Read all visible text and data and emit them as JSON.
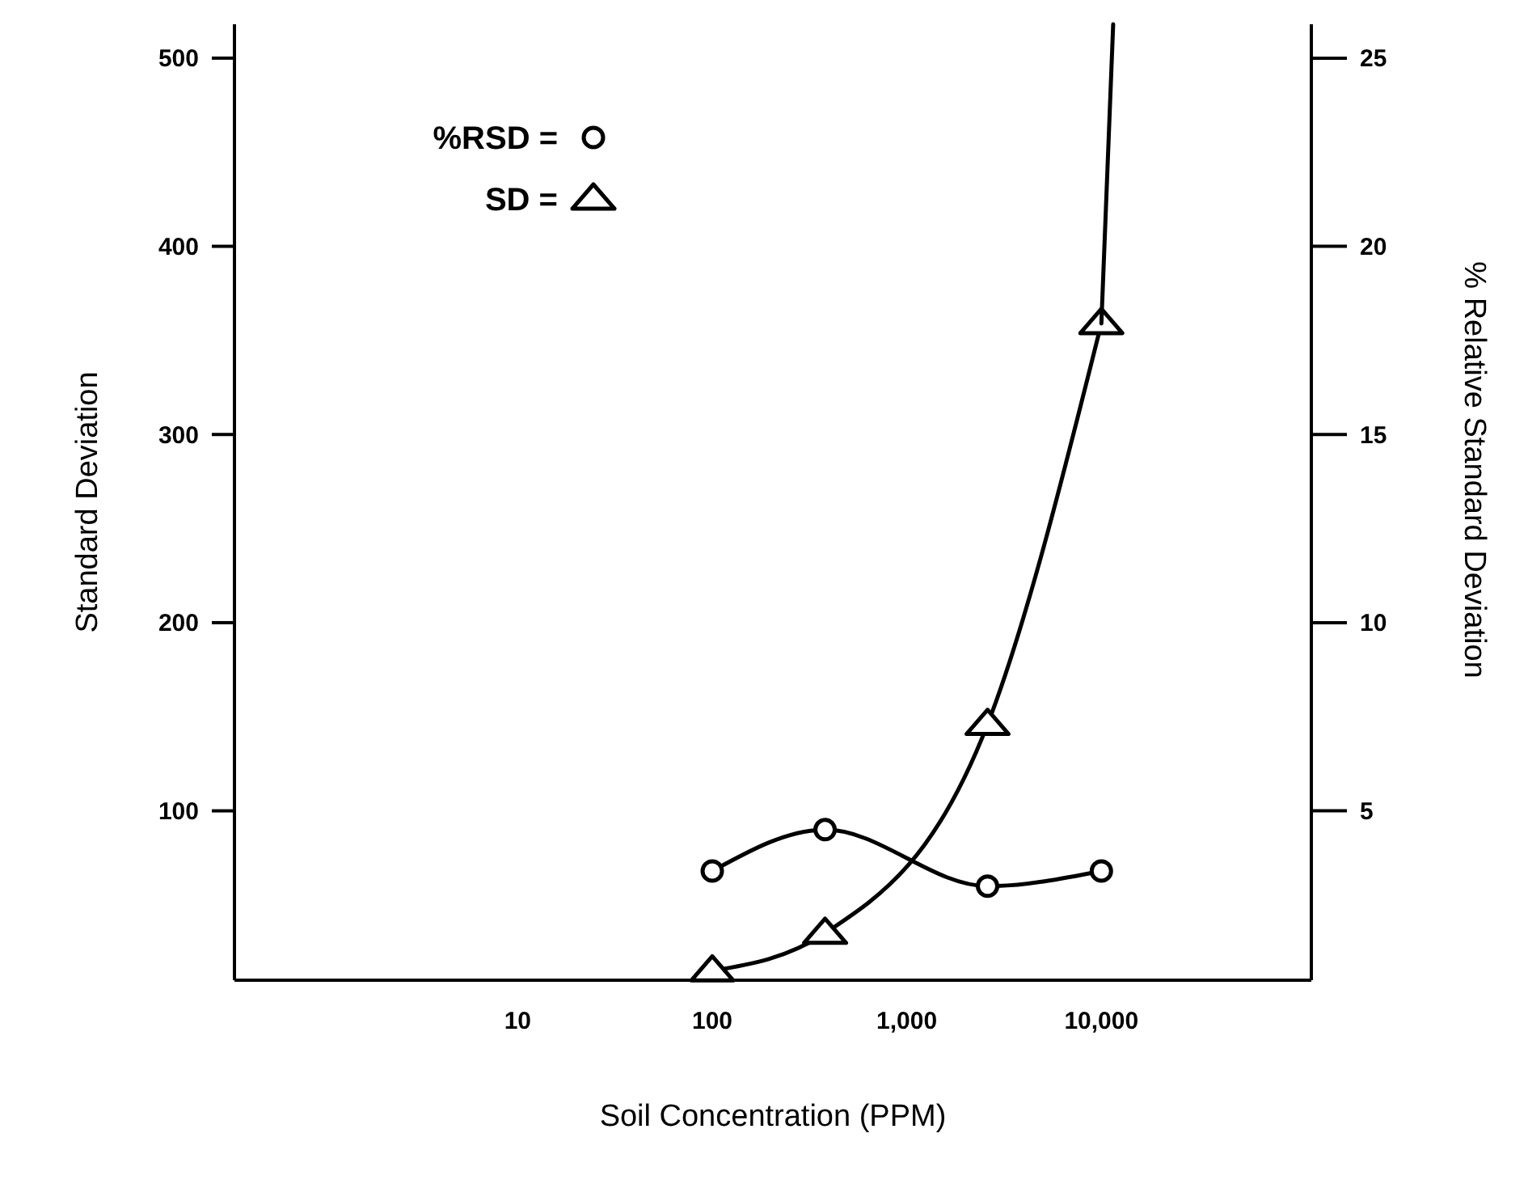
{
  "chart_data": {
    "type": "line",
    "xlabel": "Soil Concentration (PPM)",
    "ylabel": "Standard Deviation",
    "y2label": "% Relative Standard Deviation",
    "log": "x",
    "xlim": [
      0.35,
      120000
    ],
    "xticks": [
      10,
      100,
      {
        "value": 1000,
        "label": "1,000"
      },
      {
        "value": 10000,
        "label": "10,000"
      }
    ],
    "ylim": [
      10,
      518
    ],
    "yticks": [
      100,
      200,
      300,
      400,
      500
    ],
    "y2lim": [
      0.5,
      25.9
    ],
    "y2ticks": [
      5,
      10,
      15,
      20,
      25
    ],
    "grid": false,
    "legend": "top left",
    "line_style": "solid",
    "series": [
      {
        "name": "%RSD =",
        "color": "#000000",
        "marker": "circle",
        "axis": "y2",
        "x": [
          100,
          380,
          2600,
          10000
        ],
        "values": [
          3.4,
          4.5,
          3.0,
          3.4
        ]
      },
      {
        "name": "SD =",
        "color": "#000000",
        "marker": "triangle",
        "x": [
          100,
          380,
          2600,
          10000
        ],
        "values": [
          15,
          35,
          146,
          359
        ]
      },
      {
        "color": "#000000",
        "marker": "none",
        "x": [
          10000,
          11500
        ],
        "values": [
          359,
          518
        ]
      }
    ]
  }
}
